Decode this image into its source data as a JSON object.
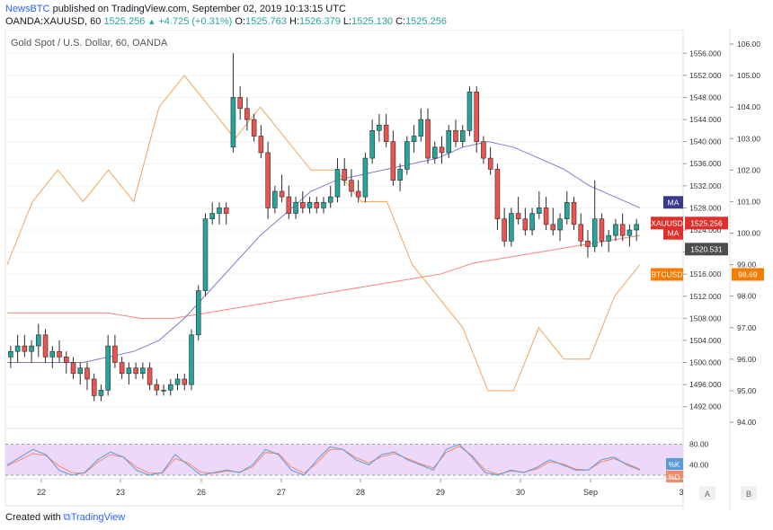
{
  "header": {
    "brand": "NewsBTC",
    "published_text": " published on TradingView.com, September 02, 2019 10:13:15 UTC",
    "symbol": "OANDA:XAUUSD, 60",
    "close_top": "1525.256",
    "change": "+4.725 (+0.31%)",
    "o_label": "O:",
    "o_value": "1525.763",
    "h_label": "H:",
    "h_value": "1526.379",
    "l_label": "L:",
    "l_value": "1525.130",
    "c_label": "C:",
    "c_value": "1525.256"
  },
  "chart_title": "Gold Spot / U.S. Dollar, 60, OANDA",
  "footer": {
    "created": "Created with",
    "logo": "TradingView"
  },
  "bottom_buttons": {
    "a": "A",
    "b": "B"
  },
  "colors": {
    "up": "#26a69a",
    "down": "#ef5350",
    "candle": "#2b2b2b",
    "ma_fast": "#7e7ec8",
    "ma_slow": "#f7867a",
    "btc": "#f7a25a",
    "stoch_k": "#5b9bd5",
    "stoch_d": "#f28b6a",
    "stoch_bg": "#e7c8f7",
    "xau_tag": "#e0302b",
    "ma_tag": "#3a3a8c",
    "price_tag": "#4d4d4d",
    "btc_tag": "#f57c00"
  },
  "chart_data": {
    "type": "candlestick",
    "price_axis": {
      "ticks": [
        "1556.000",
        "1552.000",
        "1548.000",
        "1544.000",
        "1540.000",
        "1536.000",
        "1532.000",
        "1528.000",
        "1524.000",
        "1520.000",
        "1516.000",
        "1512.000",
        "1508.000",
        "1504.000",
        "1500.000",
        "1496.000",
        "1492.000"
      ],
      "range": [
        1490,
        1558
      ]
    },
    "btc_axis": {
      "ticks": [
        "106.00",
        "105.00",
        "104.00",
        "103.00",
        "102.00",
        "101.00",
        "100.00",
        "99.00",
        "98.00",
        "97.00",
        "96.00",
        "95.00",
        "94.00"
      ]
    },
    "time_axis": [
      "22",
      "23",
      "26",
      "27",
      "28",
      "29",
      "30",
      "Sep",
      "3"
    ],
    "candles": [
      [
        1501,
        1503,
        1499,
        1502
      ],
      [
        1502,
        1505,
        1500,
        1503
      ],
      [
        1503,
        1505,
        1501,
        1502
      ],
      [
        1502,
        1504,
        1500,
        1503
      ],
      [
        1503,
        1507,
        1501,
        1505
      ],
      [
        1505,
        1506,
        1500,
        1501
      ],
      [
        1501,
        1503,
        1499,
        1502
      ],
      [
        1502,
        1504,
        1500,
        1501
      ],
      [
        1501,
        1502,
        1498,
        1500
      ],
      [
        1500,
        1501,
        1497,
        1498
      ],
      [
        1498,
        1500,
        1496,
        1499
      ],
      [
        1499,
        1500,
        1495,
        1497
      ],
      [
        1497,
        1498,
        1493,
        1494
      ],
      [
        1494,
        1496,
        1493,
        1495
      ],
      [
        1495,
        1505,
        1494,
        1503
      ],
      [
        1503,
        1505,
        1499,
        1500
      ],
      [
        1500,
        1501,
        1497,
        1498
      ],
      [
        1498,
        1500,
        1496,
        1499
      ],
      [
        1499,
        1500,
        1497,
        1498
      ],
      [
        1498,
        1500,
        1497,
        1499
      ],
      [
        1499,
        1500,
        1495,
        1496
      ],
      [
        1496,
        1497,
        1494,
        1495
      ],
      [
        1495,
        1496,
        1494,
        1495
      ],
      [
        1495,
        1497,
        1494,
        1496
      ],
      [
        1496,
        1498,
        1495,
        1497
      ],
      [
        1497,
        1498,
        1495,
        1496
      ],
      [
        1496,
        1506,
        1495,
        1505
      ],
      [
        1505,
        1514,
        1504,
        1513
      ],
      [
        1513,
        1527,
        1512,
        1526
      ],
      [
        1526,
        1529,
        1525,
        1527
      ],
      [
        1527,
        1529,
        1525,
        1528
      ],
      [
        1528,
        1529,
        1525,
        1527
      ],
      [
        1539,
        1556,
        1538,
        1548
      ],
      [
        1548,
        1550,
        1544,
        1546
      ],
      [
        1546,
        1548,
        1542,
        1544
      ],
      [
        1544,
        1545,
        1540,
        1541
      ],
      [
        1541,
        1543,
        1537,
        1538
      ],
      [
        1538,
        1540,
        1526,
        1528
      ],
      [
        1528,
        1532,
        1527,
        1531
      ],
      [
        1531,
        1534,
        1529,
        1530
      ],
      [
        1530,
        1532,
        1526,
        1527
      ],
      [
        1527,
        1530,
        1526,
        1529
      ],
      [
        1529,
        1531,
        1527,
        1528
      ],
      [
        1528,
        1530,
        1527,
        1529
      ],
      [
        1529,
        1530,
        1527,
        1528
      ],
      [
        1528,
        1530,
        1527,
        1529
      ],
      [
        1529,
        1532,
        1528,
        1530
      ],
      [
        1530,
        1537,
        1529,
        1535
      ],
      [
        1535,
        1537,
        1532,
        1533
      ],
      [
        1533,
        1535,
        1530,
        1531
      ],
      [
        1531,
        1533,
        1529,
        1530
      ],
      [
        1530,
        1538,
        1529,
        1537
      ],
      [
        1537,
        1544,
        1536,
        1542
      ],
      [
        1542,
        1545,
        1540,
        1543
      ],
      [
        1543,
        1545,
        1539,
        1540
      ],
      [
        1540,
        1542,
        1532,
        1533
      ],
      [
        1533,
        1536,
        1531,
        1535
      ],
      [
        1535,
        1541,
        1534,
        1540
      ],
      [
        1540,
        1543,
        1538,
        1541
      ],
      [
        1541,
        1546,
        1540,
        1544
      ],
      [
        1544,
        1546,
        1536,
        1537
      ],
      [
        1537,
        1540,
        1536,
        1539
      ],
      [
        1539,
        1541,
        1536,
        1538
      ],
      [
        1538,
        1543,
        1537,
        1542
      ],
      [
        1542,
        1544,
        1539,
        1540
      ],
      [
        1540,
        1543,
        1539,
        1542
      ],
      [
        1542,
        1550,
        1541,
        1549
      ],
      [
        1549,
        1550,
        1538,
        1540
      ],
      [
        1540,
        1541,
        1536,
        1537
      ],
      [
        1537,
        1539,
        1534,
        1535
      ],
      [
        1535,
        1536,
        1524,
        1526
      ],
      [
        1526,
        1528,
        1521,
        1522
      ],
      [
        1522,
        1528,
        1521,
        1527
      ],
      [
        1527,
        1530,
        1525,
        1526
      ],
      [
        1526,
        1528,
        1523,
        1524
      ],
      [
        1524,
        1528,
        1523,
        1527
      ],
      [
        1527,
        1531,
        1526,
        1528
      ],
      [
        1528,
        1530,
        1524,
        1525
      ],
      [
        1525,
        1528,
        1523,
        1524
      ],
      [
        1524,
        1527,
        1522,
        1526
      ],
      [
        1526,
        1531,
        1525,
        1529
      ],
      [
        1529,
        1530,
        1524,
        1525
      ],
      [
        1525,
        1527,
        1521,
        1522
      ],
      [
        1522,
        1524,
        1519,
        1521
      ],
      [
        1521,
        1533,
        1520,
        1526
      ],
      [
        1526,
        1527,
        1521,
        1522
      ],
      [
        1522,
        1524,
        1520,
        1523
      ],
      [
        1523,
        1526,
        1522,
        1525
      ],
      [
        1525,
        1527,
        1522,
        1523
      ],
      [
        1523,
        1525,
        1521,
        1524
      ],
      [
        1524,
        1526,
        1522,
        1525
      ]
    ],
    "ma_fast": [
      1500,
      1500,
      1500,
      1500,
      1501,
      1502,
      1504,
      1508,
      1513,
      1518,
      1523,
      1527,
      1531,
      1533,
      1534,
      1535,
      1536,
      1537,
      1539,
      1540,
      1539,
      1537,
      1535,
      1532,
      1530,
      1528
    ],
    "ma_slow": [
      1509,
      1509,
      1509,
      1509,
      1508,
      1508,
      1509,
      1510,
      1511,
      1512,
      1513,
      1514,
      1515,
      1516,
      1518,
      1519,
      1520,
      1521,
      1522,
      1523
    ],
    "btc": [
      99,
      101,
      102,
      101,
      102,
      101,
      104,
      105,
      104,
      103,
      104,
      103,
      102,
      102,
      101,
      101,
      99,
      98,
      97,
      95,
      95,
      97,
      96,
      96,
      98,
      99
    ],
    "tags": {
      "ma_fast": "MA",
      "xau": "XAUUSD",
      "xau_value": "1525.256",
      "ma_slow": "MA",
      "price": "1520.531",
      "btc": "BTCUSD",
      "btc_value": "98.69"
    },
    "stoch": {
      "ticks": [
        "80.00",
        "40.00"
      ],
      "labels": [
        "%K",
        "%D"
      ],
      "k": [
        40,
        55,
        70,
        60,
        30,
        20,
        25,
        50,
        65,
        55,
        30,
        20,
        25,
        60,
        40,
        20,
        25,
        30,
        25,
        40,
        70,
        60,
        30,
        20,
        50,
        75,
        70,
        50,
        40,
        60,
        65,
        50,
        40,
        30,
        70,
        80,
        55,
        25,
        20,
        30,
        25,
        35,
        50,
        40,
        30,
        30,
        50,
        55,
        40,
        30
      ],
      "d": [
        38,
        50,
        62,
        58,
        38,
        25,
        24,
        45,
        60,
        55,
        36,
        24,
        24,
        52,
        44,
        26,
        24,
        28,
        26,
        36,
        64,
        62,
        36,
        24,
        44,
        70,
        70,
        54,
        44,
        56,
        62,
        52,
        42,
        34,
        64,
        76,
        58,
        30,
        22,
        28,
        26,
        32,
        46,
        42,
        32,
        30,
        46,
        52,
        42,
        32
      ]
    }
  }
}
